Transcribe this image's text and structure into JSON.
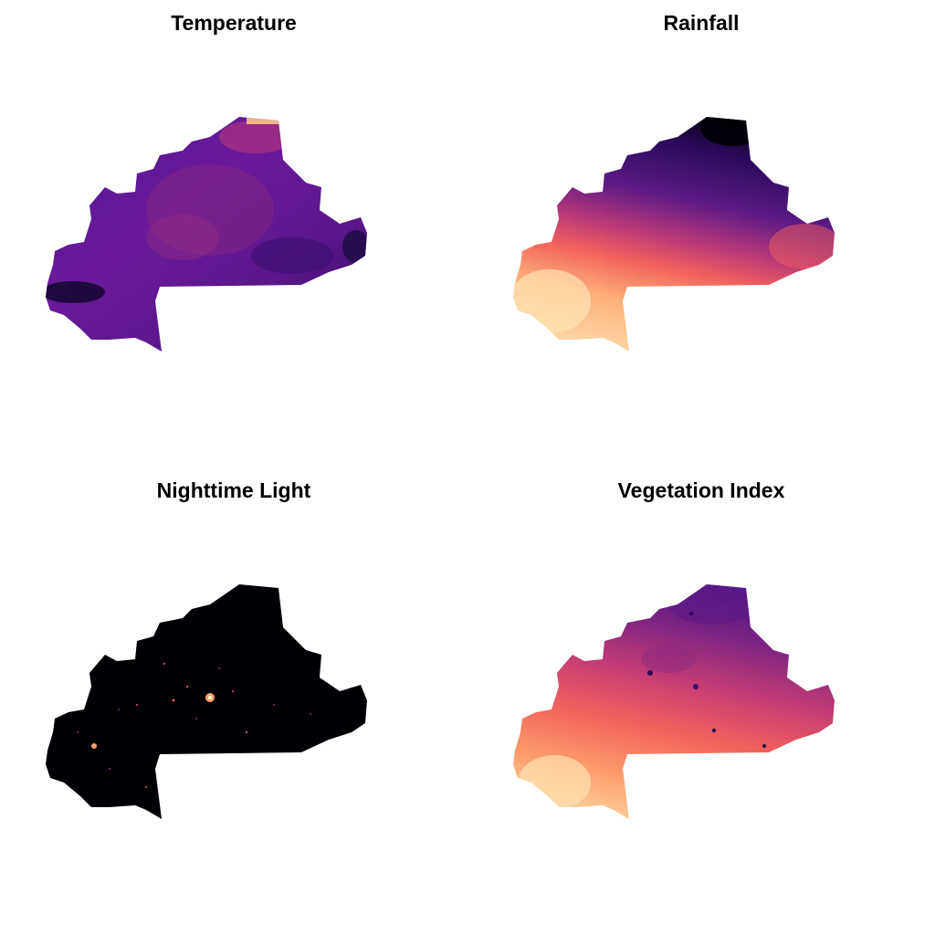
{
  "figure": {
    "panels": [
      {
        "title": "Temperature",
        "palette": [
          "#1b0c41",
          "#3b0f70",
          "#641a80",
          "#8c2981",
          "#b73779",
          "#fcfdbf"
        ]
      },
      {
        "title": "Rainfall",
        "palette": [
          "#000004",
          "#3b0f70",
          "#8c2981",
          "#de4968",
          "#fe9f6d",
          "#fcfdbf"
        ]
      },
      {
        "title": "Nighttime Light",
        "palette": [
          "#000004",
          "#000004",
          "#000004",
          "#3b0f70",
          "#de4968",
          "#fcfdbf"
        ]
      },
      {
        "title": "Vegetation Index",
        "palette": [
          "#3b0f70",
          "#641a80",
          "#b73779",
          "#f1605d",
          "#feb078",
          "#fcfdbf"
        ]
      }
    ]
  }
}
